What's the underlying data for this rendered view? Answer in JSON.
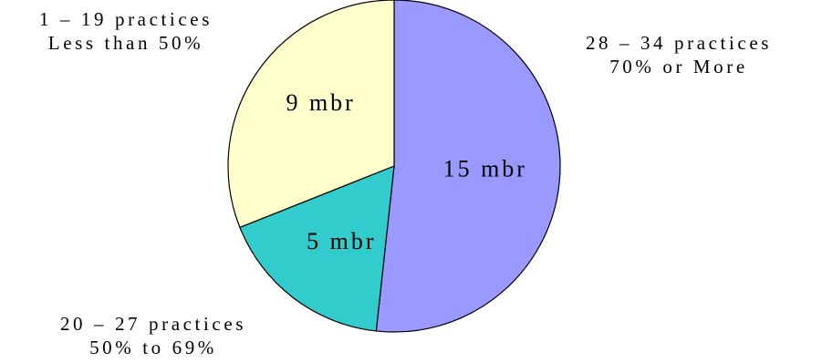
{
  "chart_data": {
    "type": "pie",
    "title": "",
    "start_angle_deg": 0,
    "direction": "clockwise",
    "slices": [
      {
        "label": "15 mbr",
        "value": 15,
        "color": "#9999ff",
        "annotation": [
          "28 – 34 practices",
          "70% or More"
        ]
      },
      {
        "label": "5 mbr",
        "value": 5,
        "color": "#33cccc",
        "annotation": [
          "20 – 27 practices",
          "50% to 69%"
        ]
      },
      {
        "label": "9 mbr",
        "value": 9,
        "color": "#ffffcc",
        "annotation": [
          "1 – 19 practices",
          "Less than 50%"
        ]
      }
    ]
  }
}
